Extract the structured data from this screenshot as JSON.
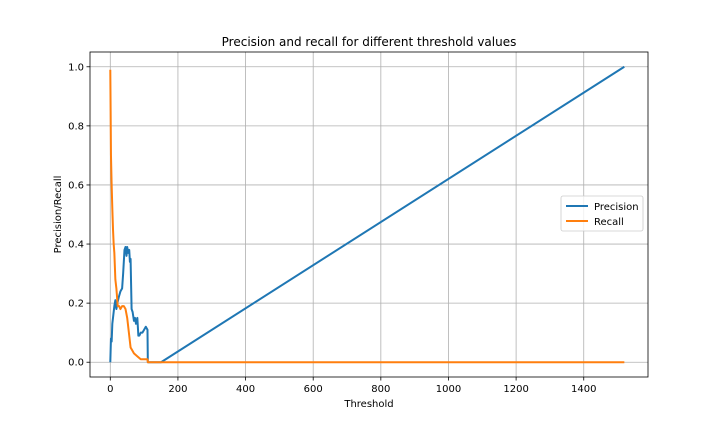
{
  "chart_data": {
    "type": "line",
    "title": "Precision and recall for different threshold values",
    "xlabel": "Threshold",
    "ylabel": "Precision/Recall",
    "xlim": [
      -60,
      1590
    ],
    "ylim": [
      -0.05,
      1.05
    ],
    "xticks": [
      0,
      200,
      400,
      600,
      800,
      1000,
      1200,
      1400
    ],
    "yticks": [
      0.0,
      0.2,
      0.4,
      0.6,
      0.8,
      1.0
    ],
    "ytick_labels": [
      "0.0",
      "0.2",
      "0.4",
      "0.6",
      "0.8",
      "1.0"
    ],
    "grid": true,
    "legend_position": "center-right",
    "series": [
      {
        "name": "Precision",
        "color": "#1f77b4",
        "x": [
          0,
          2,
          4,
          6,
          9,
          12,
          15,
          18,
          21,
          25,
          30,
          35,
          38,
          42,
          45,
          48,
          50,
          53,
          56,
          58,
          60,
          63,
          66,
          70,
          73,
          76,
          80,
          83,
          86,
          90,
          95,
          100,
          105,
          110,
          111,
          150,
          1520
        ],
        "y": [
          0.0,
          0.08,
          0.07,
          0.13,
          0.16,
          0.19,
          0.21,
          0.18,
          0.2,
          0.22,
          0.24,
          0.25,
          0.3,
          0.38,
          0.39,
          0.36,
          0.39,
          0.37,
          0.38,
          0.34,
          0.35,
          0.18,
          0.17,
          0.14,
          0.15,
          0.13,
          0.15,
          0.09,
          0.09,
          0.1,
          0.1,
          0.11,
          0.12,
          0.11,
          0.0,
          0.0,
          1.0
        ]
      },
      {
        "name": "Recall",
        "color": "#ff7f0e",
        "x": [
          0,
          1,
          2,
          4,
          6,
          8,
          10,
          12,
          15,
          18,
          22,
          26,
          30,
          35,
          40,
          45,
          50,
          55,
          60,
          65,
          70,
          80,
          90,
          100,
          110,
          111,
          1520
        ],
        "y": [
          0.99,
          0.85,
          0.7,
          0.6,
          0.52,
          0.45,
          0.4,
          0.37,
          0.28,
          0.25,
          0.19,
          0.19,
          0.18,
          0.19,
          0.19,
          0.18,
          0.15,
          0.1,
          0.05,
          0.04,
          0.03,
          0.02,
          0.01,
          0.01,
          0.01,
          0.0,
          0.0
        ]
      }
    ]
  }
}
